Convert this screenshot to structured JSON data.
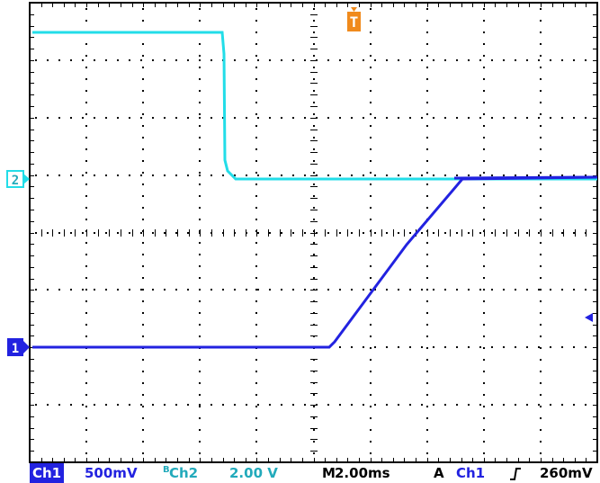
{
  "screen": {
    "trigger_marker": "T",
    "channel_markers": {
      "ch1": "1",
      "ch2": "2"
    }
  },
  "status_bar": {
    "ch1_label": "Ch1",
    "ch1_scale": "500mV",
    "ch2_label": "Ch2",
    "ch2_scale": "2.00 V",
    "timebase_label": "M",
    "timebase": "2.00ms",
    "trigger_mode": "A",
    "trigger_source": "Ch1",
    "trigger_slope": "⌐",
    "trigger_level": "260mV"
  },
  "colors": {
    "ch1": "#2222e0",
    "ch2": "#22dde8",
    "trigger": "#f08a1c",
    "grid": "#000000"
  }
}
